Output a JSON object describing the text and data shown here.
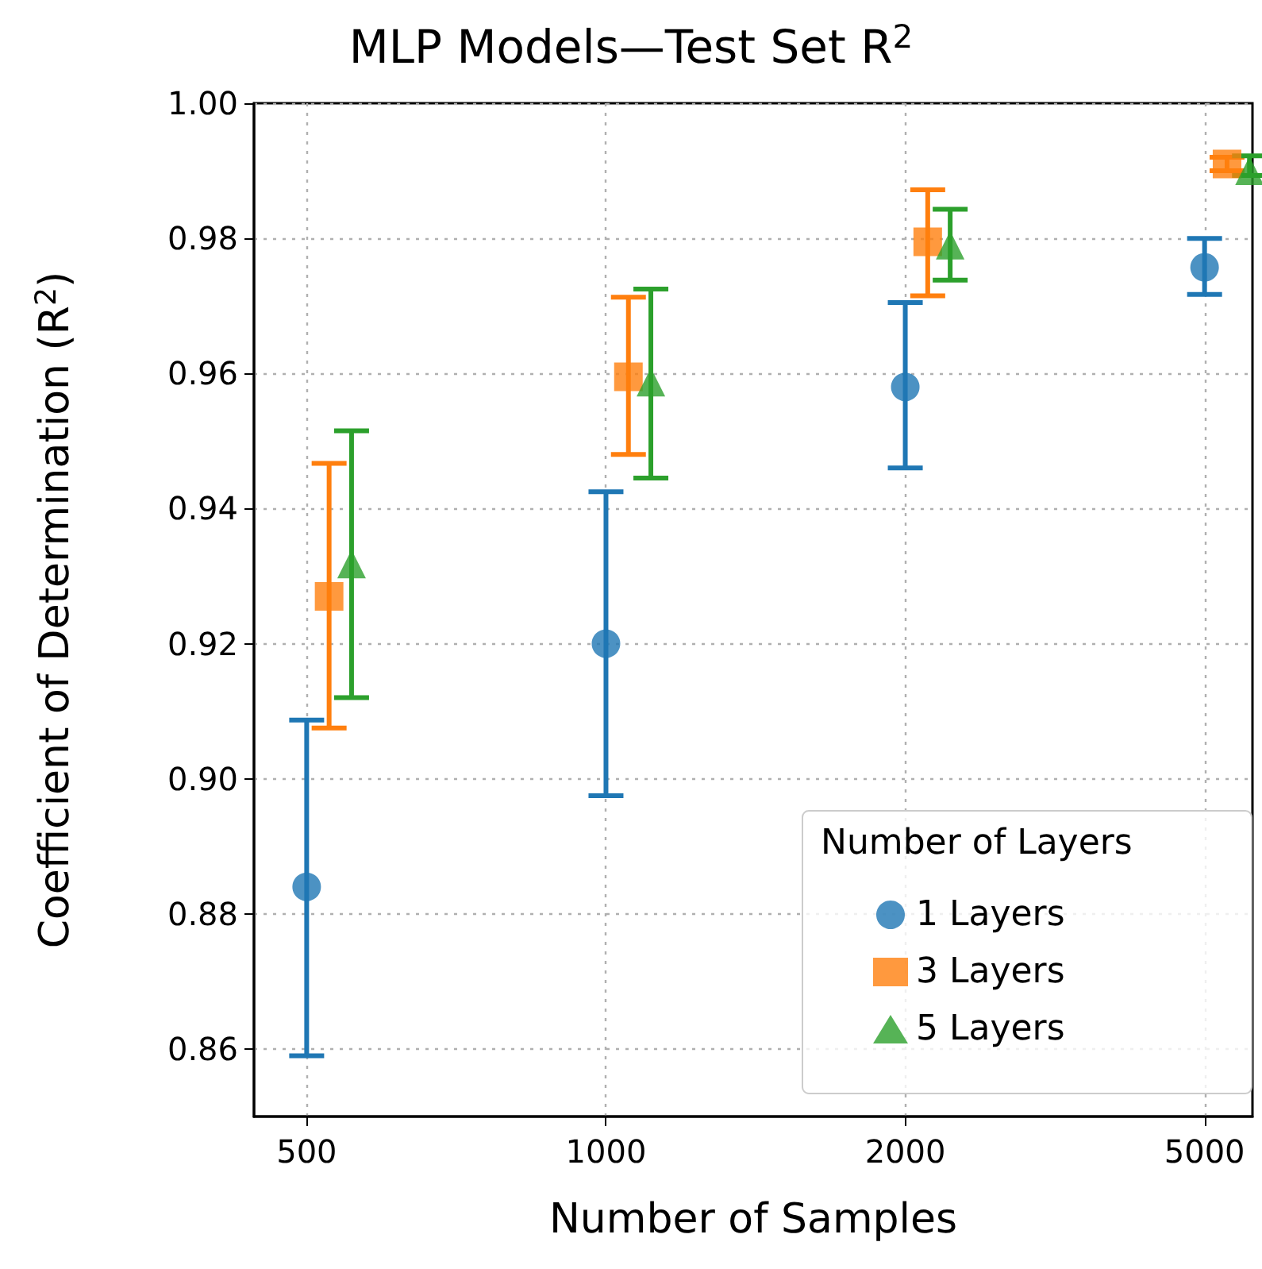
{
  "chart_data": {
    "type": "scatter",
    "title": "MLP Models—Test Set R$^{2}$",
    "xlabel": "Number of Samples",
    "ylabel": "Coefficient of Determination (R$^{2}$)",
    "legend_title": "Number of Layers",
    "legend": "bottom right",
    "grid": true,
    "categories": [
      "500",
      "1000",
      "2000",
      "5000"
    ],
    "ylim": [
      0.85,
      1.0
    ],
    "yticks": [
      0.86,
      0.88,
      {
        "value": 0.9,
        "label": "0.90"
      },
      0.92,
      0.94,
      0.96,
      0.98,
      {
        "value": 1,
        "label": "1.00"
      }
    ],
    "series": [
      {
        "name": "1 Layers",
        "color": "#1f77b4",
        "marker": "circle",
        "values": [
          0.884,
          0.92,
          0.958,
          0.9757
        ],
        "errors": [
          [
            0.859,
            0.9087
          ],
          [
            0.8975,
            0.9425
          ],
          [
            0.946,
            0.9705
          ],
          [
            0.9717,
            0.98
          ]
        ]
      },
      {
        "name": "3 Layers",
        "color": "#ff7f0e",
        "marker": "square",
        "values": [
          0.927,
          0.9595,
          0.9795,
          0.991
        ],
        "errors": [
          [
            0.9075,
            0.9467
          ],
          [
            0.948,
            0.9713
          ],
          [
            0.9715,
            0.9872
          ],
          [
            0.99,
            0.992
          ]
        ]
      },
      {
        "name": "5 Layers",
        "color": "#2ca02c",
        "marker": "triangle",
        "values": [
          0.9318,
          0.9587,
          0.979,
          0.99
        ],
        "errors": [
          [
            0.912,
            0.9515
          ],
          [
            0.9445,
            0.9725
          ],
          [
            0.9738,
            0.9843
          ],
          [
            0.9893,
            0.9922
          ]
        ]
      }
    ]
  }
}
